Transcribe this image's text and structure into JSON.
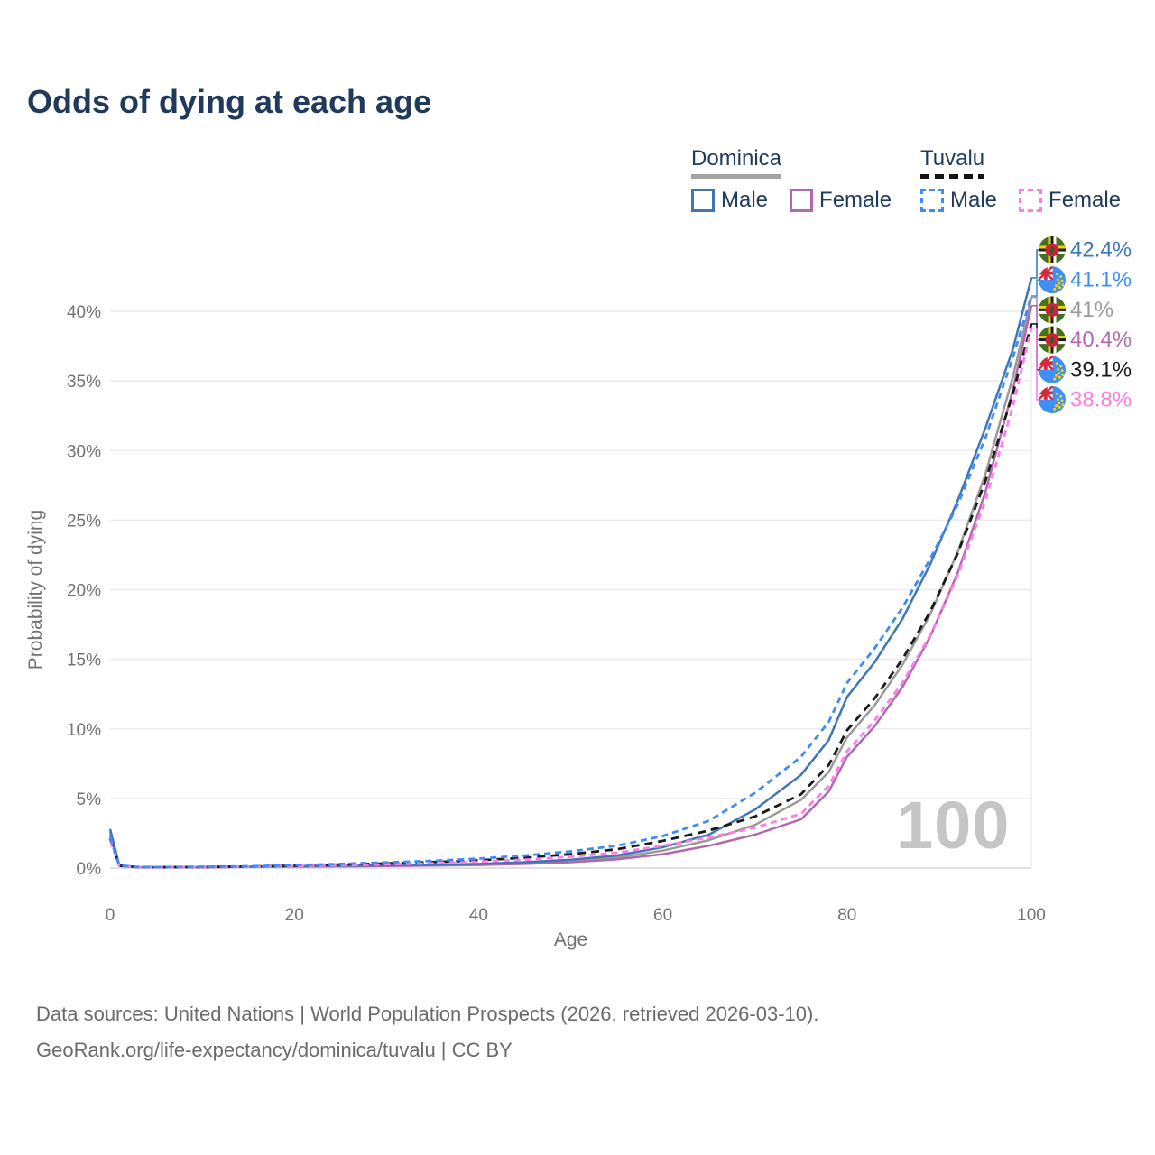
{
  "title": "Odds of dying at each age",
  "watermark": "100",
  "legend": {
    "groups": [
      {
        "id": "dominica",
        "label": "Dominica",
        "line_style": "solid",
        "line_color": "#a3a3a3",
        "items": [
          {
            "label": "Male",
            "color": "#3f76b5"
          },
          {
            "label": "Female",
            "color": "#b168ae"
          }
        ]
      },
      {
        "id": "tuvalu",
        "label": "Tuvalu",
        "line_style": "dashed",
        "line_color": "#141414",
        "items": [
          {
            "label": "Male",
            "color": "#3e8cfc"
          },
          {
            "label": "Female",
            "color": "#ff7ce8"
          }
        ]
      }
    ]
  },
  "chart_data": {
    "type": "line",
    "title": "Odds of dying at each age",
    "xlabel": "Age",
    "ylabel": "Probability of dying",
    "xlim": [
      0,
      100
    ],
    "ylim": [
      0,
      44
    ],
    "grid": "horizontal",
    "legend_position": "top-right",
    "xticks": {
      "values": [
        0,
        20,
        40,
        60,
        80,
        100
      ],
      "labels": [
        "0",
        "20",
        "40",
        "60",
        "80",
        "100"
      ]
    },
    "yticks": {
      "values": [
        0,
        5,
        10,
        15,
        20,
        25,
        30,
        35,
        40
      ],
      "labels": [
        "0%",
        "5%",
        "10%",
        "15%",
        "20%",
        "25%",
        "30%",
        "35%",
        "40%"
      ]
    },
    "ages": [
      0,
      1,
      3,
      5,
      10,
      15,
      20,
      25,
      30,
      35,
      40,
      45,
      50,
      55,
      60,
      65,
      70,
      75,
      78,
      80,
      83,
      86,
      89,
      92,
      95,
      98,
      100
    ],
    "series": [
      {
        "name": "Dominica Both sexes",
        "country": "dominica",
        "sex": "both",
        "style": "solid",
        "color": "#9a9a9a",
        "end_label": "41%",
        "values": [
          2.6,
          0.18,
          0.06,
          0.05,
          0.06,
          0.09,
          0.13,
          0.15,
          0.18,
          0.21,
          0.26,
          0.36,
          0.5,
          0.75,
          1.25,
          2.0,
          3.1,
          4.9,
          6.9,
          9.4,
          11.7,
          14.6,
          18.2,
          22.7,
          28.3,
          35.3,
          41.0
        ]
      },
      {
        "name": "Dominica Female",
        "country": "dominica",
        "sex": "female",
        "style": "solid",
        "color": "#b168ae",
        "end_label": "40.4%",
        "values": [
          2.4,
          0.16,
          0.05,
          0.05,
          0.06,
          0.08,
          0.1,
          0.12,
          0.15,
          0.18,
          0.22,
          0.3,
          0.42,
          0.62,
          1.0,
          1.6,
          2.4,
          3.5,
          5.5,
          8.0,
          10.2,
          13.0,
          16.6,
          21.2,
          27.0,
          34.4,
          40.4
        ]
      },
      {
        "name": "Dominica Male",
        "country": "dominica",
        "sex": "male",
        "style": "solid",
        "color": "#3f76b5",
        "end_label": "42.4%",
        "values": [
          2.8,
          0.2,
          0.07,
          0.06,
          0.07,
          0.1,
          0.15,
          0.17,
          0.2,
          0.24,
          0.3,
          0.42,
          0.6,
          0.9,
          1.5,
          2.4,
          4.2,
          6.7,
          9.2,
          12.3,
          14.8,
          17.9,
          21.8,
          26.4,
          31.6,
          37.3,
          42.4
        ]
      },
      {
        "name": "Tuvalu Both sexes",
        "country": "tuvalu",
        "sex": "both",
        "style": "dashed",
        "color": "#1a1a1a",
        "end_label": "39.1%",
        "values": [
          2.1,
          0.16,
          0.07,
          0.06,
          0.08,
          0.11,
          0.17,
          0.25,
          0.33,
          0.43,
          0.56,
          0.74,
          1.0,
          1.35,
          1.95,
          2.7,
          3.7,
          5.3,
          7.4,
          9.9,
          12.2,
          15.0,
          18.4,
          22.6,
          27.8,
          34.1,
          39.1
        ]
      },
      {
        "name": "Tuvalu Female",
        "country": "tuvalu",
        "sex": "female",
        "style": "dashed",
        "color": "#ff7ce8",
        "end_label": "38.8%",
        "values": [
          2.0,
          0.15,
          0.06,
          0.05,
          0.07,
          0.1,
          0.14,
          0.2,
          0.27,
          0.35,
          0.46,
          0.6,
          0.82,
          1.1,
          1.6,
          2.2,
          2.9,
          3.9,
          5.9,
          8.4,
          10.6,
          13.3,
          16.7,
          21.0,
          26.4,
          33.2,
          38.8
        ]
      },
      {
        "name": "Tuvalu Male",
        "country": "tuvalu",
        "sex": "male",
        "style": "dashed",
        "color": "#3e8cfc",
        "end_label": "41.1%",
        "values": [
          2.2,
          0.18,
          0.08,
          0.07,
          0.09,
          0.13,
          0.21,
          0.3,
          0.4,
          0.52,
          0.68,
          0.9,
          1.2,
          1.6,
          2.3,
          3.4,
          5.4,
          8.0,
          10.5,
          13.3,
          15.8,
          18.7,
          22.2,
          26.1,
          30.9,
          36.7,
          41.1
        ]
      }
    ],
    "end_labels": [
      {
        "text": "42.4%",
        "series": "Dominica Male",
        "flag": "dominica",
        "color": "#3f76b5",
        "value": 42.4
      },
      {
        "text": "41.1%",
        "series": "Tuvalu Male",
        "flag": "tuvalu",
        "color": "#3e8cfc",
        "value": 41.1
      },
      {
        "text": "41%",
        "series": "Dominica Both sexes",
        "flag": "dominica",
        "color": "#9a9a9a",
        "value": 41.0
      },
      {
        "text": "40.4%",
        "series": "Dominica Female",
        "flag": "dominica",
        "color": "#b168ae",
        "value": 40.4
      },
      {
        "text": "39.1%",
        "series": "Tuvalu Both sexes",
        "flag": "tuvalu",
        "color": "#1a1a1a",
        "value": 39.1
      },
      {
        "text": "38.8%",
        "series": "Tuvalu Female",
        "flag": "tuvalu",
        "color": "#ff7ce8",
        "value": 38.8
      }
    ]
  },
  "footer": {
    "line1": "Data sources: United Nations | World Population Prospects (2026, retrieved 2026-03-10).",
    "line2": "GeoRank.org/life-expectancy/dominica/tuvalu | CC BY"
  }
}
